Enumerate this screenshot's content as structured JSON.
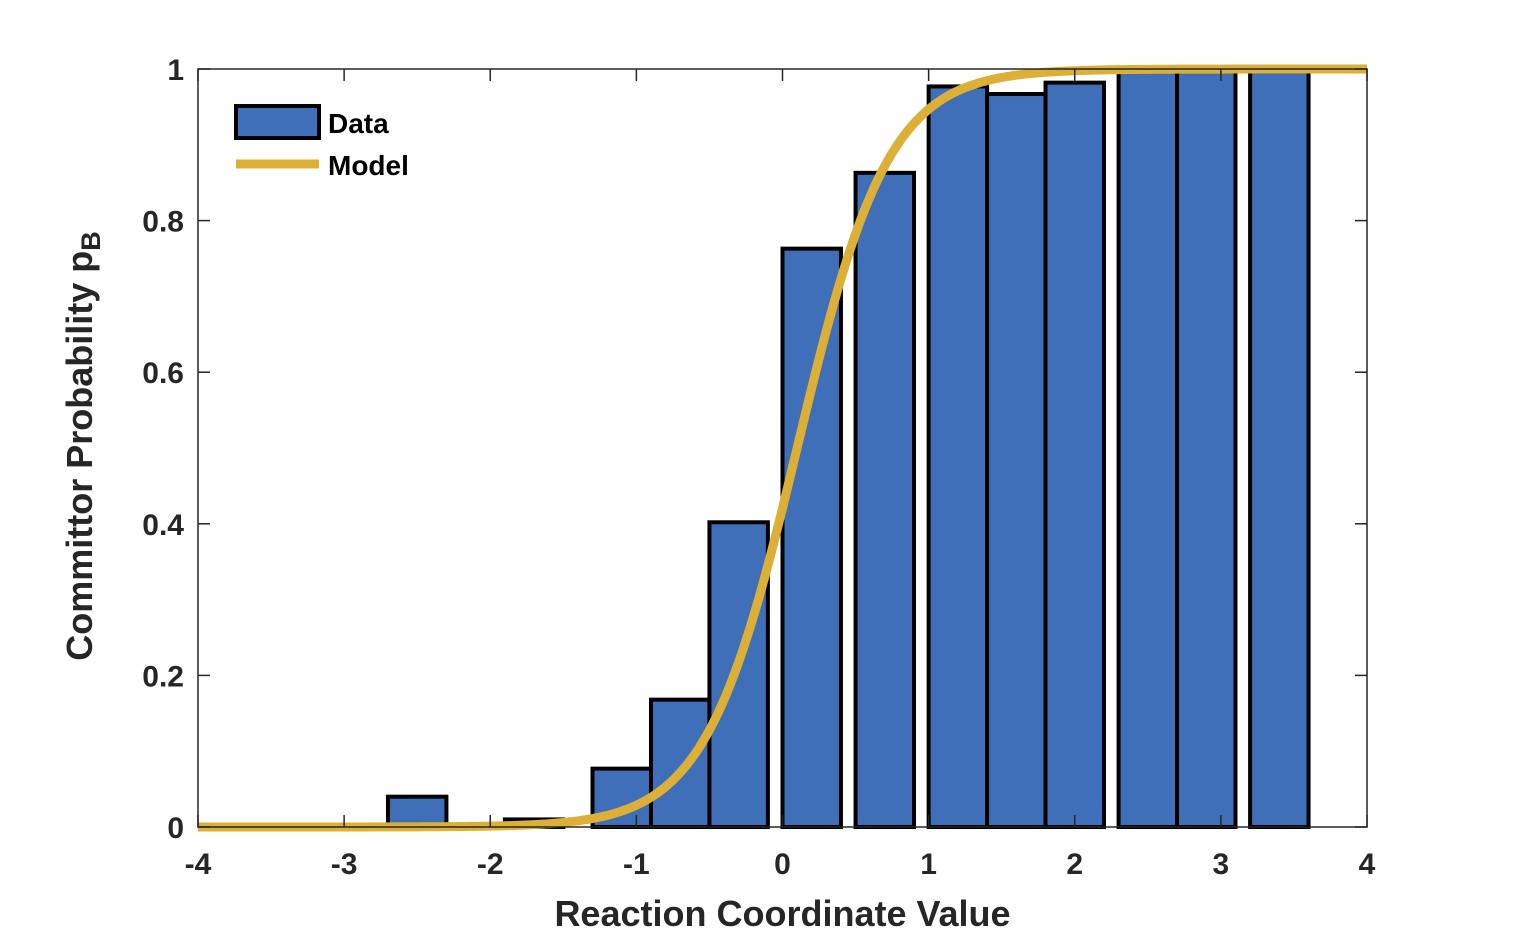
{
  "chart_data": {
    "type": "bar",
    "xlabel": "Reaction Coordinate Value",
    "ylabel": "Committor Probability p",
    "ylabel_subscript": "B",
    "xlim": [
      -4,
      4
    ],
    "ylim": [
      0,
      1
    ],
    "xticks": [
      -4,
      -3,
      -2,
      -1,
      0,
      1,
      2,
      3,
      4
    ],
    "xtick_labels": [
      "-4",
      "-3",
      "-2",
      "-1",
      "0",
      "1",
      "2",
      "3",
      "4"
    ],
    "yticks": [
      0,
      0.2,
      0.4,
      0.6,
      0.8,
      1
    ],
    "ytick_labels": [
      "0",
      "0.2",
      "0.4",
      "0.6",
      "0.8",
      "1"
    ],
    "grid": false,
    "legend_position": "top-left",
    "series": [
      {
        "name": "Data",
        "kind": "bar",
        "color": "#3f6fb9",
        "edge_color": "#000000",
        "bin_width": 0.4,
        "x": [
          -2.5,
          -2.1,
          -1.7,
          -1.1,
          -0.7,
          -0.3,
          0.2,
          0.7,
          1.2,
          1.6,
          2.0,
          2.5,
          2.9,
          3.4
        ],
        "values": [
          0.04,
          0.0,
          0.01,
          0.077,
          0.168,
          0.402,
          0.763,
          0.863,
          0.977,
          0.967,
          0.982,
          1.0,
          1.0,
          1.0
        ]
      },
      {
        "name": "Model",
        "kind": "line",
        "color": "#dcaf37",
        "function": "logistic",
        "center": 0.1,
        "steepness": 3.2,
        "x": [
          -4,
          -3,
          -2.5,
          -2,
          -1.5,
          -1,
          -0.75,
          -0.5,
          -0.25,
          0,
          0.25,
          0.5,
          0.75,
          1,
          1.25,
          1.5,
          2,
          2.5,
          3,
          4
        ],
        "values": [
          0.0,
          0.0,
          0.0003,
          0.0012,
          0.006,
          0.029,
          0.06,
          0.128,
          0.245,
          0.421,
          0.616,
          0.783,
          0.889,
          0.947,
          0.976,
          0.989,
          0.998,
          1.0,
          1.0,
          1.0
        ]
      }
    ]
  }
}
